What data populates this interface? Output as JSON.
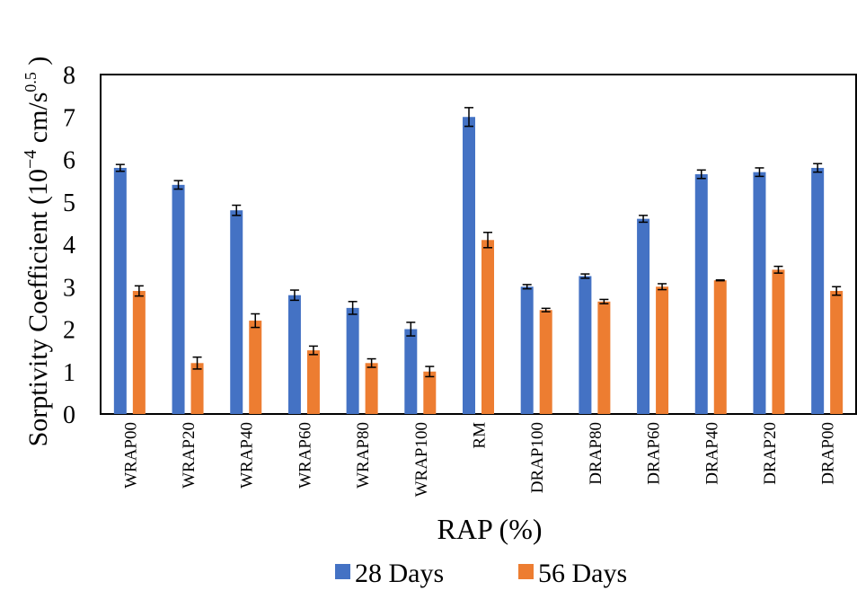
{
  "chart_data": {
    "type": "bar",
    "xlabel": "RAP (%)",
    "ylabel": {
      "main": "Sorptivity Coefficient (10",
      "exp1": "−4",
      "mid": " cm/s",
      "exp2": "0.5",
      "end": " )"
    },
    "ylim": [
      0,
      8
    ],
    "yticks": [
      "0",
      "1",
      "2",
      "3",
      "4",
      "5",
      "6",
      "7",
      "8"
    ],
    "grid": false,
    "legend_position": "bottom",
    "categories": [
      "WRAP00",
      "WRAP20",
      "WRAP40",
      "WRAP60",
      "WRAP80",
      "WRAP100",
      "RM",
      "DRAP100",
      "DRAP80",
      "DRAP60",
      "DRAP40",
      "DRAP20",
      "DRAP00"
    ],
    "series": [
      {
        "name": "28 Days",
        "color": "#4472C4",
        "values": [
          5.8,
          5.4,
          4.8,
          2.8,
          2.5,
          2.0,
          7.0,
          3.0,
          3.25,
          4.6,
          5.65,
          5.7,
          5.8
        ],
        "errors": [
          0.08,
          0.1,
          0.12,
          0.12,
          0.15,
          0.16,
          0.22,
          0.05,
          0.05,
          0.08,
          0.1,
          0.1,
          0.1
        ]
      },
      {
        "name": "56 Days",
        "color": "#ED7D31",
        "values": [
          2.9,
          1.2,
          2.2,
          1.5,
          1.2,
          1.0,
          4.1,
          2.45,
          2.65,
          3.0,
          3.15,
          3.4,
          2.9
        ],
        "errors": [
          0.12,
          0.14,
          0.16,
          0.1,
          0.1,
          0.12,
          0.18,
          0.04,
          0.05,
          0.07,
          0.01,
          0.08,
          0.1
        ]
      }
    ]
  }
}
